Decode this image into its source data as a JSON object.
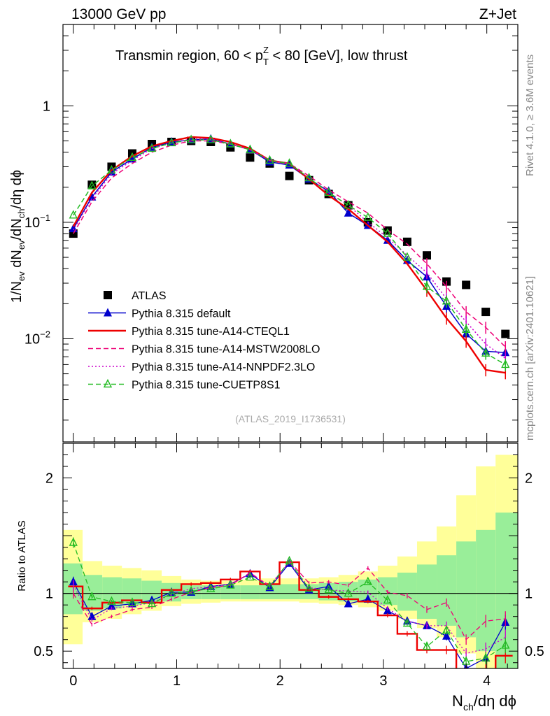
{
  "header": {
    "energy_label": "13000 GeV pp",
    "process_label": "Z+Jet",
    "plot_title_pre": "Transmin region, 60 < p",
    "plot_title_sup": "Z",
    "plot_title_sub": "T",
    "plot_title_post": " < 80 [GeV], low thrust",
    "rivet_label": "Rivet 4.1.0, ≥ 3.6M events",
    "source_label": "mcplots.cern.ch [arXiv:2401.10621]",
    "analysis_id": "(ATLAS_2019_I1736531)"
  },
  "axes": {
    "xlabel_main": "N",
    "xlabel_sub": "ch",
    "xlabel_rest": "/dη dϕ",
    "ylabel_top": "1/N_ev dN_ev/dN_ch/dη dϕ",
    "ylabel_bottom": "Ratio to ATLAS",
    "x_range": [
      -0.1,
      4.3
    ],
    "y_top_range_log": [
      0.0013,
      5.0
    ],
    "y_ratio_range": [
      0.35,
      2.3
    ]
  },
  "chart_data": [
    {
      "type": "scatter",
      "title": "Transmin region, 60 < pT^Z < 80 [GeV], low thrust",
      "xlabel": "Nch/dη dϕ",
      "ylabel": "1/Nev dNev/dNch/dη dϕ",
      "yscale": "log",
      "ylim": [
        0.0013,
        5.0
      ],
      "x_ticks": [
        "0",
        "1",
        "2",
        "3",
        "4"
      ],
      "y_ticks": [
        "10^-2",
        "10^-1",
        "1"
      ],
      "x": [
        0.0,
        0.18,
        0.37,
        0.57,
        0.76,
        0.95,
        1.14,
        1.33,
        1.52,
        1.71,
        1.9,
        2.09,
        2.28,
        2.47,
        2.66,
        2.85,
        3.04,
        3.23,
        3.42,
        3.61,
        3.8,
        3.99,
        4.18
      ],
      "series": [
        {
          "name": "ATLAS",
          "color": "#000000",
          "style": "data",
          "values": [
            0.08,
            0.21,
            0.3,
            0.39,
            0.47,
            0.49,
            0.5,
            0.49,
            0.44,
            0.36,
            0.32,
            0.25,
            0.23,
            0.175,
            0.14,
            0.1,
            0.085,
            0.068,
            0.052,
            0.031,
            0.029,
            0.017,
            0.011
          ]
        },
        {
          "name": "Pythia 8.315 default",
          "color": "#0000cc",
          "style": "solid-triangle",
          "values": [
            0.088,
            0.165,
            0.27,
            0.35,
            0.44,
            0.49,
            0.51,
            0.52,
            0.47,
            0.42,
            0.33,
            0.31,
            0.235,
            0.185,
            0.12,
            0.094,
            0.07,
            0.047,
            0.034,
            0.019,
            0.011,
            0.0078,
            0.0076
          ]
        },
        {
          "name": "Pythia 8.315 tune-A14-CTEQL1",
          "color": "#ee0000",
          "style": "solid",
          "values": [
            0.092,
            0.18,
            0.28,
            0.37,
            0.45,
            0.5,
            0.54,
            0.53,
            0.49,
            0.43,
            0.34,
            0.32,
            0.235,
            0.17,
            0.13,
            0.094,
            0.068,
            0.044,
            0.026,
            0.015,
            0.0095,
            0.0054,
            0.0051
          ]
        },
        {
          "name": "Pythia 8.315 tune-A14-MSTW2008LO",
          "color": "#ee0077",
          "style": "dashed",
          "values": [
            0.08,
            0.15,
            0.24,
            0.32,
            0.4,
            0.46,
            0.5,
            0.5,
            0.47,
            0.42,
            0.34,
            0.32,
            0.25,
            0.19,
            0.15,
            0.12,
            0.086,
            0.065,
            0.044,
            0.028,
            0.017,
            0.0125,
            0.0085
          ]
        },
        {
          "name": "Pythia 8.315 tune-A14-NNPDF2.3LO",
          "color": "#cc00cc",
          "style": "dotted",
          "values": [
            0.086,
            0.16,
            0.26,
            0.34,
            0.43,
            0.48,
            0.52,
            0.52,
            0.47,
            0.42,
            0.34,
            0.32,
            0.24,
            0.18,
            0.14,
            0.1,
            0.074,
            0.052,
            0.037,
            0.022,
            0.014,
            0.009,
            0.0068
          ]
        },
        {
          "name": "Pythia 8.315 tune-CUETP8S1",
          "color": "#22bb22",
          "style": "dashed-open-triangle",
          "values": [
            0.115,
            0.205,
            0.28,
            0.36,
            0.43,
            0.48,
            0.51,
            0.51,
            0.47,
            0.42,
            0.34,
            0.32,
            0.24,
            0.18,
            0.14,
            0.11,
            0.08,
            0.05,
            0.028,
            0.021,
            0.012,
            0.0075,
            0.006
          ]
        }
      ]
    },
    {
      "type": "line",
      "title": "Ratio to ATLAS",
      "ylabel": "Ratio to ATLAS",
      "ylim": [
        0.35,
        2.3
      ],
      "x_ticks": [
        "0",
        "1",
        "2",
        "3",
        "4"
      ],
      "y_ticks": [
        "0.5",
        "1",
        "2"
      ],
      "bins_low": [
        -0.1,
        0.09,
        0.28,
        0.47,
        0.66,
        0.855,
        1.045,
        1.235,
        1.425,
        1.615,
        1.805,
        1.995,
        2.185,
        2.375,
        2.565,
        2.755,
        2.945,
        3.135,
        3.325,
        3.515,
        3.705,
        3.895,
        4.085
      ],
      "bins_high": [
        0.09,
        0.28,
        0.47,
        0.66,
        0.855,
        1.045,
        1.235,
        1.425,
        1.615,
        1.805,
        1.995,
        2.185,
        2.375,
        2.565,
        2.755,
        2.945,
        3.135,
        3.325,
        3.515,
        3.705,
        3.895,
        4.085,
        4.3
      ],
      "band_inner_lo": [
        0.82,
        0.85,
        0.87,
        0.9,
        0.92,
        0.93,
        0.95,
        0.95,
        0.95,
        0.95,
        0.95,
        0.95,
        0.95,
        0.94,
        0.93,
        0.92,
        0.9,
        0.85,
        0.78,
        0.72,
        0.62,
        0.5,
        0.35
      ],
      "band_inner_hi": [
        1.26,
        1.16,
        1.14,
        1.13,
        1.11,
        1.09,
        1.07,
        1.07,
        1.07,
        1.07,
        1.08,
        1.08,
        1.08,
        1.09,
        1.1,
        1.12,
        1.14,
        1.18,
        1.25,
        1.33,
        1.45,
        1.55,
        1.7
      ],
      "band_outer_lo": [
        0.56,
        0.75,
        0.78,
        0.82,
        0.85,
        0.89,
        0.91,
        0.92,
        0.93,
        0.93,
        0.93,
        0.93,
        0.92,
        0.91,
        0.9,
        0.88,
        0.85,
        0.78,
        0.7,
        0.62,
        0.48,
        0.35,
        0.35
      ],
      "band_outer_hi": [
        1.55,
        1.28,
        1.24,
        1.22,
        1.2,
        1.15,
        1.12,
        1.11,
        1.11,
        1.12,
        1.13,
        1.13,
        1.13,
        1.14,
        1.16,
        1.19,
        1.24,
        1.32,
        1.45,
        1.58,
        1.85,
        2.1,
        2.2
      ],
      "series": [
        {
          "name": "Pythia 8.315 default",
          "color": "#0000cc",
          "values": [
            1.1,
            0.8,
            0.89,
            0.91,
            0.94,
            1.01,
            1.01,
            1.06,
            1.08,
            1.17,
            1.05,
            1.26,
            1.03,
            1.06,
            0.91,
            0.95,
            0.85,
            0.76,
            0.72,
            0.63,
            0.35,
            0.44,
            0.75
          ]
        },
        {
          "name": "Pythia 8.315 tune-A14-CTEQL1",
          "color": "#ee0000",
          "values": [
            1.06,
            0.87,
            0.92,
            0.94,
            0.92,
            1.03,
            1.08,
            1.09,
            1.12,
            1.19,
            1.08,
            1.27,
            1.03,
            0.97,
            0.95,
            0.93,
            0.81,
            0.65,
            0.51,
            0.51,
            0.34,
            0.34,
            0.46
          ]
        },
        {
          "name": "Pythia 8.315 tune-A14-MSTW2008LO",
          "color": "#ee0077",
          "values": [
            1.0,
            0.73,
            0.8,
            0.86,
            0.88,
            0.95,
            1.01,
            1.05,
            1.07,
            1.18,
            1.06,
            1.28,
            1.09,
            1.1,
            1.07,
            1.22,
            1.01,
            0.98,
            0.86,
            0.92,
            0.6,
            0.76,
            0.78
          ]
        },
        {
          "name": "Pythia 8.315 tune-A14-NNPDF2.3LO",
          "color": "#cc00cc",
          "values": [
            1.07,
            0.77,
            0.87,
            0.89,
            0.92,
            0.99,
            1.04,
            1.06,
            1.08,
            1.17,
            1.07,
            1.27,
            1.05,
            1.03,
            1.02,
            1.01,
            0.87,
            0.76,
            0.72,
            0.72,
            0.48,
            0.52,
            0.62
          ]
        },
        {
          "name": "Pythia 8.315 tune-CUETP8S1",
          "color": "#22bb22",
          "values": [
            1.44,
            0.97,
            0.93,
            0.92,
            0.91,
            1.0,
            1.02,
            1.04,
            1.07,
            1.14,
            1.06,
            1.28,
            1.04,
            1.03,
            1.0,
            1.1,
            0.94,
            0.74,
            0.54,
            0.68,
            0.41,
            0.44,
            0.55
          ]
        }
      ]
    }
  ]
}
